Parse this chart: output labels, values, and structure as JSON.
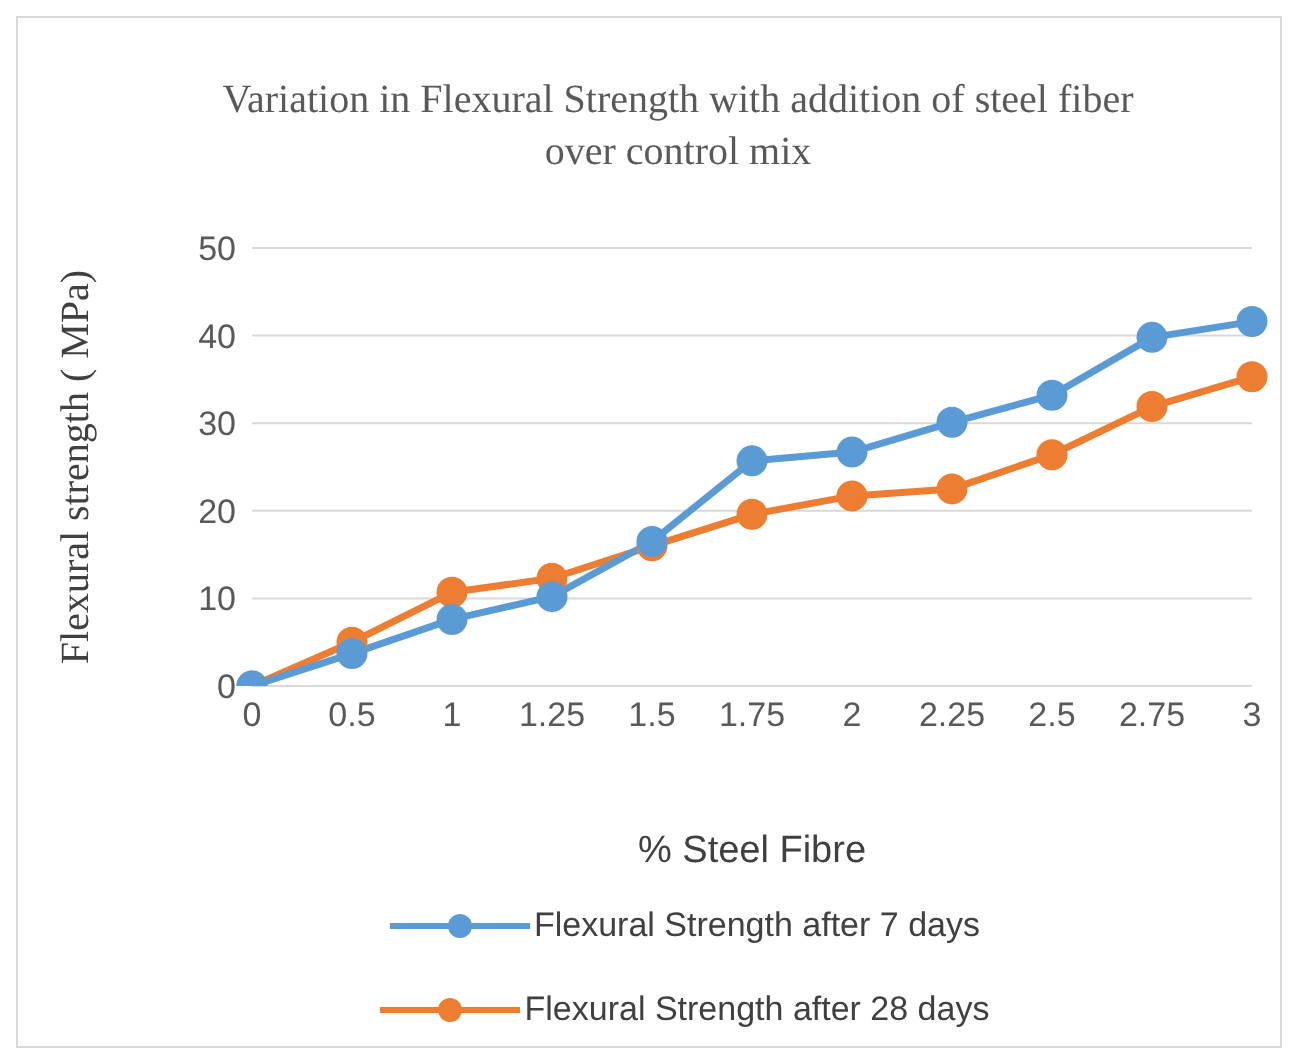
{
  "chart_data": {
    "type": "line",
    "title": "Variation in Flexural Strength with addition of steel fiber over control mix",
    "xlabel": "% Steel Fibre",
    "ylabel": "Flexural strength ( MPa)",
    "categories": [
      "0",
      "0.5",
      "1",
      "1.25",
      "1.5",
      "1.75",
      "2",
      "2.25",
      "2.5",
      "2.75",
      "3"
    ],
    "series": [
      {
        "name": "Flexural Strength after 7 days",
        "color": "#5b9bd5",
        "values": [
          0,
          3.7,
          7.6,
          10.2,
          16.5,
          25.7,
          26.7,
          30.1,
          33.2,
          39.8,
          41.6
        ]
      },
      {
        "name": "Flexural Strength after 28 days",
        "color": "#ed7d31",
        "values": [
          0,
          5.0,
          10.7,
          12.3,
          16.0,
          19.6,
          21.7,
          22.5,
          26.4,
          31.9,
          35.3
        ]
      }
    ],
    "ylim": [
      0,
      50
    ],
    "yticks": [
      0,
      10,
      20,
      30,
      40,
      50
    ],
    "grid": "y",
    "legend": "bottom",
    "marker": "circle",
    "line_style": "solid"
  }
}
